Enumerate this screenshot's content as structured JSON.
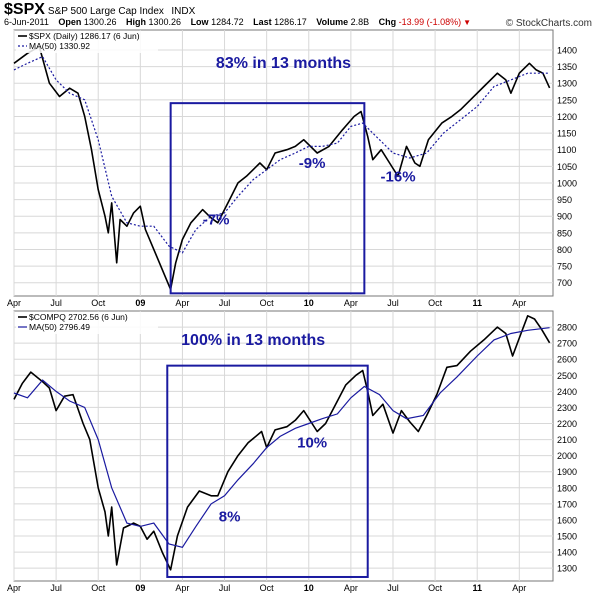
{
  "header": {
    "symbol": "$SPX",
    "name": "S&P 500 Large Cap Index",
    "exchange": "INDX",
    "date": "6-Jun-2011",
    "open_label": "Open",
    "open": "1300.26",
    "high_label": "High",
    "high": "1300.26",
    "low_label": "Low",
    "low": "1284.72",
    "last_label": "Last",
    "last": "1286.17",
    "volume_label": "Volume",
    "volume": "2.8B",
    "chg_label": "Chg",
    "chg": "-13.99 (-1.08%)",
    "brand": "© StockCharts.com"
  },
  "colors": {
    "price": "#000000",
    "ma": "#1a1aa0",
    "box": "#1a1aa0",
    "annotation": "#1a1aa0",
    "grid": "#d8d8d8"
  },
  "chart_data": [
    {
      "type": "line",
      "legend": [
        "$SPX (Daily) 1286.17 (6 Jun)",
        "MA(50) 1330.92"
      ],
      "ma_style": "dotted",
      "ylim": [
        660,
        1460
      ],
      "yticks": [
        700,
        750,
        800,
        850,
        900,
        950,
        1000,
        1050,
        1100,
        1150,
        1200,
        1250,
        1300,
        1350,
        1400
      ],
      "x_range": [
        2008.25,
        2011.45
      ],
      "x_ticks": [
        {
          "t": 2008.25,
          "label": "Apr"
        },
        {
          "t": 2008.5,
          "label": "Jul"
        },
        {
          "t": 2008.75,
          "label": "Oct"
        },
        {
          "t": 2009.0,
          "label": "09"
        },
        {
          "t": 2009.25,
          "label": "Apr"
        },
        {
          "t": 2009.5,
          "label": "Jul"
        },
        {
          "t": 2009.75,
          "label": "Oct"
        },
        {
          "t": 2010.0,
          "label": "10"
        },
        {
          "t": 2010.25,
          "label": "Apr"
        },
        {
          "t": 2010.5,
          "label": "Jul"
        },
        {
          "t": 2010.75,
          "label": "Oct"
        },
        {
          "t": 2011.0,
          "label": "11"
        },
        {
          "t": 2011.25,
          "label": "Apr"
        }
      ],
      "series": [
        {
          "name": "$SPX",
          "points": [
            [
              2008.25,
              1360
            ],
            [
              2008.33,
              1390
            ],
            [
              2008.4,
              1410
            ],
            [
              2008.46,
              1300
            ],
            [
              2008.52,
              1260
            ],
            [
              2008.58,
              1285
            ],
            [
              2008.63,
              1270
            ],
            [
              2008.67,
              1200
            ],
            [
              2008.71,
              1100
            ],
            [
              2008.75,
              980
            ],
            [
              2008.79,
              900
            ],
            [
              2008.81,
              850
            ],
            [
              2008.83,
              940
            ],
            [
              2008.86,
              760
            ],
            [
              2008.88,
              890
            ],
            [
              2008.92,
              870
            ],
            [
              2008.96,
              910
            ],
            [
              2009.0,
              930
            ],
            [
              2009.03,
              860
            ],
            [
              2009.08,
              800
            ],
            [
              2009.13,
              740
            ],
            [
              2009.18,
              680
            ],
            [
              2009.21,
              760
            ],
            [
              2009.25,
              830
            ],
            [
              2009.3,
              880
            ],
            [
              2009.37,
              920
            ],
            [
              2009.42,
              895
            ],
            [
              2009.46,
              880
            ],
            [
              2009.53,
              950
            ],
            [
              2009.58,
              1000
            ],
            [
              2009.63,
              1020
            ],
            [
              2009.71,
              1060
            ],
            [
              2009.75,
              1040
            ],
            [
              2009.8,
              1090
            ],
            [
              2009.87,
              1100
            ],
            [
              2009.92,
              1110
            ],
            [
              2009.97,
              1130
            ],
            [
              2010.05,
              1090
            ],
            [
              2010.12,
              1110
            ],
            [
              2010.2,
              1160
            ],
            [
              2010.27,
              1200
            ],
            [
              2010.31,
              1215
            ],
            [
              2010.35,
              1140
            ],
            [
              2010.38,
              1070
            ],
            [
              2010.43,
              1100
            ],
            [
              2010.48,
              1060
            ],
            [
              2010.53,
              1020
            ],
            [
              2010.58,
              1110
            ],
            [
              2010.63,
              1060
            ],
            [
              2010.66,
              1050
            ],
            [
              2010.71,
              1130
            ],
            [
              2010.79,
              1180
            ],
            [
              2010.85,
              1200
            ],
            [
              2010.9,
              1220
            ],
            [
              2010.96,
              1250
            ],
            [
              2011.04,
              1290
            ],
            [
              2011.12,
              1330
            ],
            [
              2011.17,
              1310
            ],
            [
              2011.2,
              1270
            ],
            [
              2011.25,
              1330
            ],
            [
              2011.31,
              1360
            ],
            [
              2011.35,
              1340
            ],
            [
              2011.39,
              1330
            ],
            [
              2011.43,
              1286
            ]
          ]
        },
        {
          "name": "MA(50)",
          "points": [
            [
              2008.25,
              1340
            ],
            [
              2008.33,
              1360
            ],
            [
              2008.42,
              1380
            ],
            [
              2008.5,
              1310
            ],
            [
              2008.58,
              1270
            ],
            [
              2008.67,
              1250
            ],
            [
              2008.75,
              1130
            ],
            [
              2008.83,
              960
            ],
            [
              2008.92,
              880
            ],
            [
              2009.0,
              870
            ],
            [
              2009.08,
              870
            ],
            [
              2009.17,
              810
            ],
            [
              2009.25,
              790
            ],
            [
              2009.33,
              860
            ],
            [
              2009.42,
              900
            ],
            [
              2009.5,
              910
            ],
            [
              2009.58,
              960
            ],
            [
              2009.67,
              1010
            ],
            [
              2009.75,
              1040
            ],
            [
              2009.83,
              1070
            ],
            [
              2009.92,
              1090
            ],
            [
              2010.0,
              1110
            ],
            [
              2010.08,
              1110
            ],
            [
              2010.17,
              1120
            ],
            [
              2010.25,
              1170
            ],
            [
              2010.32,
              1180
            ],
            [
              2010.4,
              1140
            ],
            [
              2010.5,
              1090
            ],
            [
              2010.6,
              1075
            ],
            [
              2010.7,
              1090
            ],
            [
              2010.8,
              1150
            ],
            [
              2010.9,
              1190
            ],
            [
              2011.0,
              1230
            ],
            [
              2011.1,
              1290
            ],
            [
              2011.2,
              1310
            ],
            [
              2011.3,
              1330
            ],
            [
              2011.43,
              1330
            ]
          ]
        }
      ],
      "annotations": [
        {
          "text": "83% in 13 months",
          "x": 2009.85,
          "y": 1345,
          "size": 16
        },
        {
          "text": "-7%",
          "x": 2009.45,
          "y": 875,
          "size": 15
        },
        {
          "text": "-9%",
          "x": 2010.02,
          "y": 1045,
          "size": 15
        },
        {
          "text": "-16%",
          "x": 2010.53,
          "y": 1005,
          "size": 15
        }
      ],
      "box": {
        "x0": 2009.18,
        "x1": 2010.33,
        "y0": 668,
        "y1": 1240
      }
    },
    {
      "type": "line",
      "legend": [
        "$COMPQ 2702.56 (6 Jun)",
        "MA(50) 2796.49"
      ],
      "ma_style": "solid",
      "ylim": [
        1220,
        2900
      ],
      "yticks": [
        1300,
        1400,
        1500,
        1600,
        1700,
        1800,
        1900,
        2000,
        2100,
        2200,
        2300,
        2400,
        2500,
        2600,
        2700,
        2800
      ],
      "x_range": [
        2008.25,
        2011.45
      ],
      "x_ticks": [
        {
          "t": 2008.25,
          "label": "Apr"
        },
        {
          "t": 2008.5,
          "label": "Jul"
        },
        {
          "t": 2008.75,
          "label": "Oct"
        },
        {
          "t": 2009.0,
          "label": "09"
        },
        {
          "t": 2009.25,
          "label": "Apr"
        },
        {
          "t": 2009.5,
          "label": "Jul"
        },
        {
          "t": 2009.75,
          "label": "Oct"
        },
        {
          "t": 2010.0,
          "label": "10"
        },
        {
          "t": 2010.25,
          "label": "Apr"
        },
        {
          "t": 2010.5,
          "label": "Jul"
        },
        {
          "t": 2010.75,
          "label": "Oct"
        },
        {
          "t": 2011.0,
          "label": "11"
        },
        {
          "t": 2011.25,
          "label": "Apr"
        }
      ],
      "series": [
        {
          "name": "$COMPQ",
          "points": [
            [
              2008.25,
              2350
            ],
            [
              2008.3,
              2450
            ],
            [
              2008.35,
              2520
            ],
            [
              2008.42,
              2460
            ],
            [
              2008.46,
              2420
            ],
            [
              2008.5,
              2280
            ],
            [
              2008.55,
              2370
            ],
            [
              2008.6,
              2380
            ],
            [
              2008.66,
              2200
            ],
            [
              2008.7,
              2100
            ],
            [
              2008.75,
              1800
            ],
            [
              2008.79,
              1650
            ],
            [
              2008.81,
              1500
            ],
            [
              2008.83,
              1680
            ],
            [
              2008.86,
              1320
            ],
            [
              2008.9,
              1550
            ],
            [
              2008.96,
              1580
            ],
            [
              2009.0,
              1560
            ],
            [
              2009.04,
              1480
            ],
            [
              2009.08,
              1530
            ],
            [
              2009.13,
              1400
            ],
            [
              2009.18,
              1290
            ],
            [
              2009.22,
              1500
            ],
            [
              2009.28,
              1680
            ],
            [
              2009.35,
              1780
            ],
            [
              2009.42,
              1750
            ],
            [
              2009.46,
              1750
            ],
            [
              2009.52,
              1900
            ],
            [
              2009.58,
              2000
            ],
            [
              2009.64,
              2080
            ],
            [
              2009.72,
              2150
            ],
            [
              2009.75,
              2050
            ],
            [
              2009.8,
              2160
            ],
            [
              2009.87,
              2180
            ],
            [
              2009.92,
              2220
            ],
            [
              2009.97,
              2280
            ],
            [
              2010.05,
              2150
            ],
            [
              2010.1,
              2200
            ],
            [
              2010.16,
              2320
            ],
            [
              2010.22,
              2440
            ],
            [
              2010.28,
              2500
            ],
            [
              2010.32,
              2530
            ],
            [
              2010.35,
              2400
            ],
            [
              2010.38,
              2250
            ],
            [
              2010.44,
              2320
            ],
            [
              2010.5,
              2140
            ],
            [
              2010.55,
              2280
            ],
            [
              2010.6,
              2210
            ],
            [
              2010.65,
              2150
            ],
            [
              2010.7,
              2250
            ],
            [
              2010.76,
              2380
            ],
            [
              2010.82,
              2550
            ],
            [
              2010.88,
              2560
            ],
            [
              2010.96,
              2650
            ],
            [
              2011.04,
              2720
            ],
            [
              2011.12,
              2800
            ],
            [
              2011.17,
              2760
            ],
            [
              2011.21,
              2620
            ],
            [
              2011.26,
              2760
            ],
            [
              2011.3,
              2870
            ],
            [
              2011.34,
              2850
            ],
            [
              2011.38,
              2790
            ],
            [
              2011.43,
              2702
            ]
          ]
        },
        {
          "name": "MA(50)",
          "points": [
            [
              2008.25,
              2390
            ],
            [
              2008.33,
              2360
            ],
            [
              2008.42,
              2470
            ],
            [
              2008.5,
              2400
            ],
            [
              2008.58,
              2340
            ],
            [
              2008.67,
              2300
            ],
            [
              2008.75,
              2100
            ],
            [
              2008.83,
              1800
            ],
            [
              2008.92,
              1580
            ],
            [
              2009.0,
              1560
            ],
            [
              2009.08,
              1580
            ],
            [
              2009.17,
              1450
            ],
            [
              2009.25,
              1430
            ],
            [
              2009.33,
              1560
            ],
            [
              2009.42,
              1700
            ],
            [
              2009.5,
              1750
            ],
            [
              2009.58,
              1850
            ],
            [
              2009.67,
              1950
            ],
            [
              2009.75,
              2050
            ],
            [
              2009.83,
              2120
            ],
            [
              2009.92,
              2170
            ],
            [
              2010.0,
              2200
            ],
            [
              2010.08,
              2230
            ],
            [
              2010.17,
              2260
            ],
            [
              2010.25,
              2360
            ],
            [
              2010.33,
              2430
            ],
            [
              2010.42,
              2380
            ],
            [
              2010.5,
              2280
            ],
            [
              2010.58,
              2230
            ],
            [
              2010.68,
              2250
            ],
            [
              2010.78,
              2390
            ],
            [
              2010.88,
              2490
            ],
            [
              2011.0,
              2620
            ],
            [
              2011.1,
              2720
            ],
            [
              2011.2,
              2760
            ],
            [
              2011.3,
              2780
            ],
            [
              2011.43,
              2796
            ]
          ]
        }
      ],
      "annotations": [
        {
          "text": "100% in 13 months",
          "x": 2009.67,
          "y": 2690,
          "size": 16
        },
        {
          "text": "8%",
          "x": 2009.53,
          "y": 1590,
          "size": 15
        },
        {
          "text": "10%",
          "x": 2010.02,
          "y": 2050,
          "size": 15
        }
      ],
      "box": {
        "x0": 2009.16,
        "x1": 2010.35,
        "y0": 1245,
        "y1": 2560
      }
    }
  ]
}
